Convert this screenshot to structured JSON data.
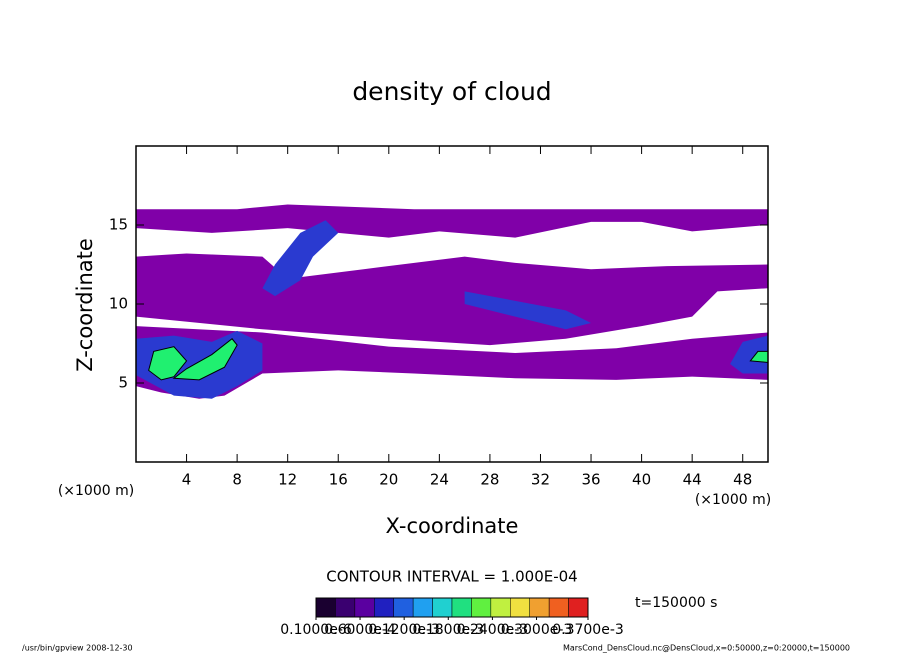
{
  "chart_data": {
    "type": "contour",
    "title": "density of cloud",
    "x_label": "X-coordinate",
    "y_label": "Z-coordinate",
    "x_unit_left": "(×1000 m)",
    "x_unit_right": "(×1000 m)",
    "xlim": [
      0,
      50
    ],
    "ylim": [
      0,
      20
    ],
    "xticks": [
      4,
      8,
      12,
      16,
      20,
      24,
      28,
      32,
      36,
      40,
      44,
      48
    ],
    "yticks": [
      5,
      10,
      15
    ],
    "contour_interval": "CONTOUR INTERVAL = 1.000E-04",
    "time_label": "t=150000 s",
    "colorbar": {
      "colors": [
        "#1a0030",
        "#3a0070",
        "#5a00a0",
        "#2020c0",
        "#2060e0",
        "#20a0f0",
        "#20d0d0",
        "#20e080",
        "#60f040",
        "#c0f040",
        "#f0e040",
        "#f0a030",
        "#f06020",
        "#e02020"
      ],
      "ticks": [
        {
          "value": 1e-07,
          "label": "0.1000e-6"
        },
        {
          "value": 6e-05,
          "label": "0.6000e-4"
        },
        {
          "value": 0.00012,
          "label": "0.1200e-3"
        },
        {
          "value": 0.00018,
          "label": "0.1800e-3"
        },
        {
          "value": 0.00024,
          "label": "0.2400e-3"
        },
        {
          "value": 0.0003,
          "label": "0.3000e-3"
        },
        {
          "value": 0.00037,
          "label": "0.3700e-3"
        }
      ]
    },
    "regions": [
      {
        "level": 1e-05,
        "color": "#8000a8",
        "points": [
          [
            0,
            16
          ],
          [
            8,
            16
          ],
          [
            12,
            16.3
          ],
          [
            22,
            16
          ],
          [
            50,
            16
          ],
          [
            50,
            15
          ],
          [
            44,
            14.6
          ],
          [
            40,
            15.2
          ],
          [
            36,
            15.2
          ],
          [
            30,
            14.2
          ],
          [
            24,
            14.6
          ],
          [
            20,
            14.2
          ],
          [
            12,
            14.8
          ],
          [
            6,
            14.5
          ],
          [
            0,
            14.8
          ],
          [
            0,
            13
          ],
          [
            4,
            13.2
          ],
          [
            10,
            13
          ],
          [
            12,
            11.6
          ],
          [
            18,
            12.2
          ],
          [
            26,
            13
          ],
          [
            30,
            12.6
          ],
          [
            36,
            12.2
          ],
          [
            42,
            12.4
          ],
          [
            50,
            12.5
          ],
          [
            50,
            11
          ],
          [
            46,
            10.8
          ],
          [
            44,
            9.2
          ],
          [
            40,
            8.6
          ],
          [
            34,
            7.8
          ],
          [
            28,
            7.4
          ],
          [
            20,
            7.8
          ],
          [
            10,
            8.4
          ],
          [
            0,
            9.2
          ]
        ]
      },
      {
        "level": 1e-05,
        "color": "#8000a8",
        "points": [
          [
            0,
            8.6
          ],
          [
            10,
            8.2
          ],
          [
            20,
            7.3
          ],
          [
            30,
            6.9
          ],
          [
            38,
            7.2
          ],
          [
            44,
            7.8
          ],
          [
            50,
            8.2
          ],
          [
            50,
            5.2
          ],
          [
            44,
            5.4
          ],
          [
            38,
            5.2
          ],
          [
            30,
            5.3
          ],
          [
            22,
            5.6
          ],
          [
            16,
            5.8
          ],
          [
            10,
            5.6
          ],
          [
            7,
            4.2
          ],
          [
            5,
            4
          ],
          [
            2,
            4.4
          ],
          [
            0,
            4.8
          ]
        ]
      },
      {
        "level": 6e-05,
        "color": "#2a3ad0",
        "points": [
          [
            10,
            11
          ],
          [
            11,
            12.5
          ],
          [
            13,
            14.5
          ],
          [
            15,
            15.3
          ],
          [
            16,
            14.5
          ],
          [
            14,
            13
          ],
          [
            13,
            11.5
          ],
          [
            11,
            10.5
          ]
        ]
      },
      {
        "level": 6e-05,
        "color": "#2a3ad0",
        "points": [
          [
            0,
            5.5
          ],
          [
            0,
            7.8
          ],
          [
            3,
            8
          ],
          [
            6,
            7.6
          ],
          [
            8,
            8.3
          ],
          [
            10,
            7.5
          ],
          [
            10,
            5.8
          ],
          [
            8,
            4.8
          ],
          [
            6,
            4
          ],
          [
            3,
            4.2
          ]
        ]
      },
      {
        "level": 6e-05,
        "color": "#2a3ad0",
        "points": [
          [
            26,
            10.8
          ],
          [
            30,
            10.2
          ],
          [
            34,
            9.6
          ],
          [
            36,
            8.8
          ],
          [
            34,
            8.4
          ],
          [
            30,
            9.2
          ],
          [
            26,
            10
          ]
        ]
      },
      {
        "level": 6e-05,
        "color": "#2a3ad0",
        "points": [
          [
            47,
            6.2
          ],
          [
            48,
            7.6
          ],
          [
            50,
            8
          ],
          [
            50,
            5.6
          ],
          [
            48,
            5.6
          ]
        ]
      },
      {
        "level": 0.00012,
        "color": "#20f070",
        "points": [
          [
            1,
            5.8
          ],
          [
            1.4,
            7
          ],
          [
            3,
            7.3
          ],
          [
            4,
            6.4
          ],
          [
            3,
            5.4
          ],
          [
            2,
            5.2
          ]
        ]
      },
      {
        "level": 0.00012,
        "color": "#20f070",
        "points": [
          [
            3,
            5.3
          ],
          [
            5,
            5.2
          ],
          [
            7,
            6
          ],
          [
            8,
            7.4
          ],
          [
            7.6,
            7.8
          ],
          [
            6,
            6.8
          ],
          [
            4,
            5.9
          ]
        ]
      },
      {
        "level": 0.00012,
        "color": "#20f070",
        "points": [
          [
            48.6,
            6.4
          ],
          [
            49.2,
            7
          ],
          [
            50,
            7
          ],
          [
            50,
            6.3
          ]
        ]
      }
    ]
  },
  "footer_left": "/usr/bin/gpview  2008-12-30",
  "footer_right": "MarsCond_DensCloud.nc@DensCloud,x=0:50000,z=0:20000,t=150000"
}
